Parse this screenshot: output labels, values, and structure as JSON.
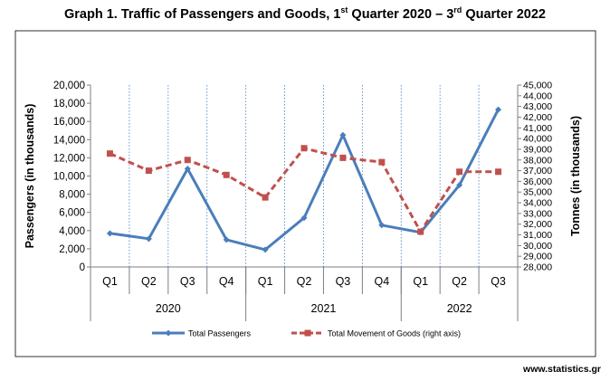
{
  "title": {
    "main_prefix": "Graph 1. Traffic of Passengers and Goods, 1",
    "sup1": "st",
    "mid": " Quarter 2020 – 3",
    "sup2": "rd",
    "suffix": " Quarter 2022"
  },
  "footer": "www.statistics.gr",
  "chart_data": {
    "type": "line",
    "title": "Graph 1. Traffic of Passengers and Goods, 1st Quarter 2020 – 3rd Quarter 2022",
    "categories": [
      "Q1",
      "Q2",
      "Q3",
      "Q4",
      "Q1",
      "Q2",
      "Q3",
      "Q4",
      "Q1",
      "Q2",
      "Q3"
    ],
    "years": [
      {
        "label": "2020",
        "span": 4
      },
      {
        "label": "2021",
        "span": 4
      },
      {
        "label": "2022",
        "span": 3
      }
    ],
    "ylabel_left": "Passengers  (in thousands)",
    "ylabel_right": "Tonnes (in thousands)",
    "ylim_left": [
      0,
      20000
    ],
    "ylim_right": [
      28000,
      45000
    ],
    "yticks_left": [
      "0",
      "2,000",
      "4,000",
      "6,000",
      "8,000",
      "10,000",
      "12,000",
      "14,000",
      "16,000",
      "18,000",
      "20,000"
    ],
    "yticks_right": [
      "28,000",
      "29,000",
      "30,000",
      "31,000",
      "32,000",
      "33,000",
      "34,000",
      "35,000",
      "36,000",
      "37,000",
      "38,000",
      "39,000",
      "40,000",
      "41,000",
      "42,000",
      "43,000",
      "44,000",
      "45,000"
    ],
    "grid": "vertical dotted",
    "legend_position": "bottom",
    "series": [
      {
        "name": "Total Passengers",
        "axis": "left",
        "color": "#4A7EBB",
        "style": "solid",
        "marker": "diamond",
        "values": [
          3700,
          3100,
          10800,
          3000,
          1900,
          5400,
          14500,
          4600,
          3800,
          9000,
          17300
        ]
      },
      {
        "name": "Total Movement of Goods (right axis)",
        "axis": "right",
        "color": "#C0504D",
        "style": "dashed",
        "marker": "square",
        "values": [
          38600,
          37000,
          38000,
          36600,
          34500,
          39100,
          38200,
          37800,
          31300,
          36900,
          36900
        ]
      }
    ]
  }
}
